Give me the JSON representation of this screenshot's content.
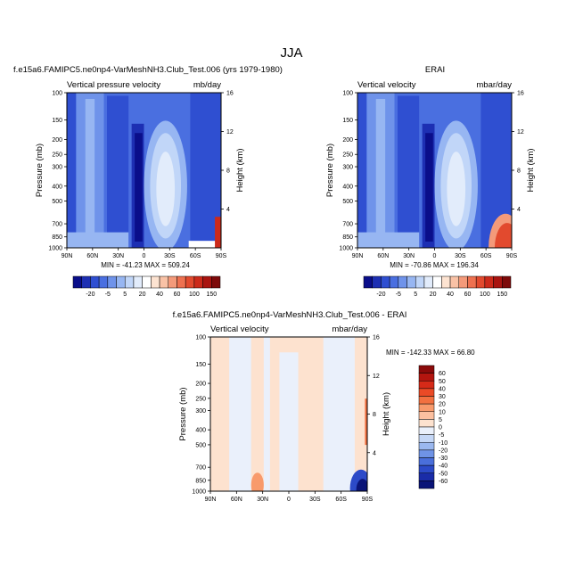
{
  "figure": {
    "title": "JJA"
  },
  "chart_data": [
    {
      "type": "heatmap",
      "title": "f.e15a6.FAMIPC5.ne0np4-VarMeshNH3.Club_Test.006 (yrs 1979-1980)",
      "subtitle_left": "Vertical pressure velocity",
      "subtitle_right": "mb/day",
      "xlabel": "",
      "ylabel": "Pressure (mb)",
      "y2label": "Height (km)",
      "x_ticks": [
        "90N",
        "60N",
        "30N",
        "0",
        "30S",
        "60S",
        "90S"
      ],
      "y_ticks": [
        "100",
        "150",
        "200",
        "250",
        "300",
        "400",
        "500",
        "700",
        "850",
        "1000"
      ],
      "y2_ticks": [
        "4",
        "8",
        "12",
        "16"
      ],
      "xlim": [
        "90N",
        "90S"
      ],
      "ylim": [
        1000,
        100
      ],
      "stats": "MIN = -41.23   MAX = 509.24",
      "colorbar": {
        "orientation": "horizontal",
        "tick_labels": [
          "-20",
          "-5",
          "5",
          "20",
          "40",
          "60",
          "100",
          "150"
        ],
        "colors": [
          "#0a0e8a",
          "#1d2fb3",
          "#2f4fd1",
          "#4a6fe0",
          "#6f93ea",
          "#97b6f2",
          "#c1d6f8",
          "#e2ecfb",
          "#ffffff",
          "#fde3d1",
          "#f9c2a6",
          "#f49a7a",
          "#ee7150",
          "#e24a2e",
          "#cc2a1a",
          "#a91410",
          "#7d0a0a"
        ]
      }
    },
    {
      "type": "heatmap",
      "title": "ERAI",
      "subtitle_left": "Vertical velocity",
      "subtitle_right": "mbar/day",
      "xlabel": "",
      "ylabel": "Pressure (mb)",
      "y2label": "Height (km)",
      "x_ticks": [
        "90N",
        "60N",
        "30N",
        "0",
        "30S",
        "60S",
        "90S"
      ],
      "y_ticks": [
        "100",
        "150",
        "200",
        "250",
        "300",
        "400",
        "500",
        "700",
        "850",
        "1000"
      ],
      "y2_ticks": [
        "4",
        "8",
        "12",
        "16"
      ],
      "xlim": [
        "90N",
        "90S"
      ],
      "ylim": [
        1000,
        100
      ],
      "stats": "MIN = -70.86   MAX = 196.34",
      "colorbar": {
        "orientation": "horizontal",
        "tick_labels": [
          "-20",
          "-5",
          "5",
          "20",
          "40",
          "60",
          "100",
          "150"
        ],
        "colors": [
          "#0a0e8a",
          "#1d2fb3",
          "#2f4fd1",
          "#4a6fe0",
          "#6f93ea",
          "#97b6f2",
          "#c1d6f8",
          "#e2ecfb",
          "#ffffff",
          "#fde3d1",
          "#f9c2a6",
          "#f49a7a",
          "#ee7150",
          "#e24a2e",
          "#cc2a1a",
          "#a91410",
          "#7d0a0a"
        ]
      }
    },
    {
      "type": "heatmap",
      "title": "f.e15a6.FAMIPC5.ne0np4-VarMeshNH3.Club_Test.006 - ERAI",
      "subtitle_left": "Vertical velocity",
      "subtitle_right": "mbar/day",
      "xlabel": "",
      "ylabel": "Pressure (mb)",
      "y2label": "Height (km)",
      "x_ticks": [
        "90N",
        "60N",
        "30N",
        "0",
        "30S",
        "60S",
        "90S"
      ],
      "y_ticks": [
        "100",
        "150",
        "200",
        "250",
        "300",
        "400",
        "500",
        "700",
        "850",
        "1000"
      ],
      "y2_ticks": [
        "4",
        "8",
        "12",
        "16"
      ],
      "xlim": [
        "90N",
        "90S"
      ],
      "ylim": [
        1000,
        100
      ],
      "stats": "MIN = -142.33   MAX =  66.80",
      "colorbar": {
        "orientation": "vertical",
        "tick_labels": [
          "60",
          "50",
          "40",
          "30",
          "20",
          "10",
          "5",
          "0",
          "-5",
          "-10",
          "-20",
          "-30",
          "-40",
          "-50",
          "-60"
        ],
        "colors": [
          "#8b0a0a",
          "#b3150f",
          "#d62a18",
          "#ea4a26",
          "#f27040",
          "#f89a6c",
          "#fcc0a0",
          "#fde2cf",
          "#eaf0fb",
          "#c5d7f6",
          "#9bb8ef",
          "#6f93e6",
          "#4a6fdb",
          "#2c4ac8",
          "#1a2ca8",
          "#0a1478"
        ]
      }
    }
  ]
}
